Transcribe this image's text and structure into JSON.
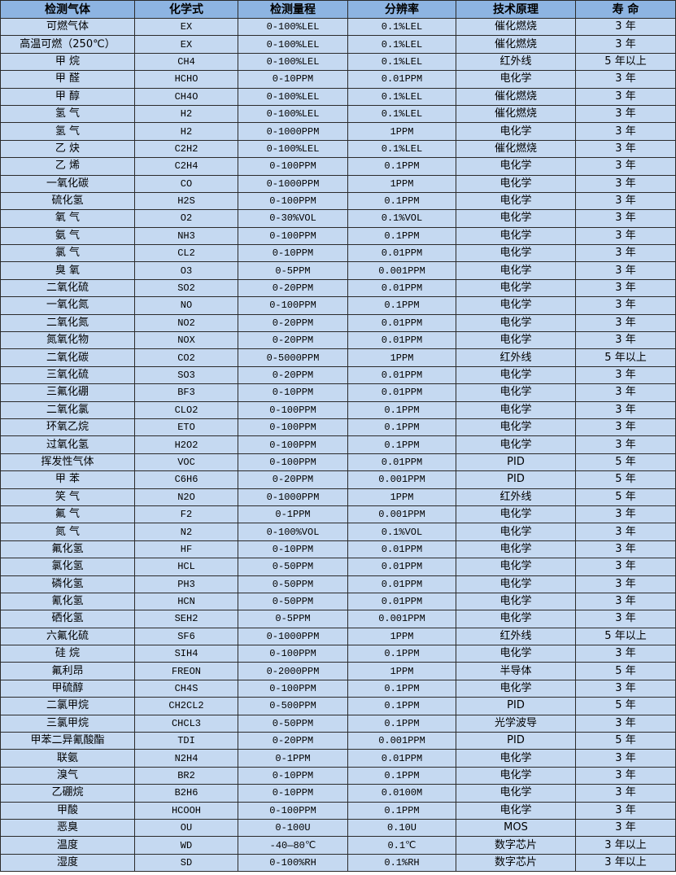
{
  "table": {
    "headers": [
      "检测气体",
      "化学式",
      "检测量程",
      "分辨率",
      "技术原理",
      "寿  命"
    ],
    "rows": [
      [
        "可燃气体",
        "EX",
        "0-100%LEL",
        "0.1%LEL",
        "催化燃烧",
        "3 年"
      ],
      [
        "高温可燃（250℃）",
        "EX",
        "0-100%LEL",
        "0.1%LEL",
        "催化燃烧",
        "3 年"
      ],
      [
        "甲 烷",
        "CH4",
        "0-100%LEL",
        "0.1%LEL",
        "红外线",
        "5 年以上"
      ],
      [
        "甲 醛",
        "HCHO",
        "0-10PPM",
        "0.01PPM",
        "电化学",
        "3 年"
      ],
      [
        "甲 醇",
        "CH4O",
        "0-100%LEL",
        "0.1%LEL",
        "催化燃烧",
        "3 年"
      ],
      [
        "氢 气",
        "H2",
        "0-100%LEL",
        "0.1%LEL",
        "催化燃烧",
        "3 年"
      ],
      [
        "氢 气",
        "H2",
        "0-1000PPM",
        "1PPM",
        "电化学",
        "3 年"
      ],
      [
        "乙 炔",
        "C2H2",
        "0-100%LEL",
        "0.1%LEL",
        "催化燃烧",
        "3 年"
      ],
      [
        "乙 烯",
        "C2H4",
        "0-100PPM",
        "0.1PPM",
        "电化学",
        "3 年"
      ],
      [
        "一氧化碳",
        "CO",
        "0-1000PPM",
        "1PPM",
        "电化学",
        "3 年"
      ],
      [
        "硫化氢",
        "H2S",
        "0-100PPM",
        "0.1PPM",
        "电化学",
        "3 年"
      ],
      [
        "氧 气",
        "O2",
        "0-30%VOL",
        "0.1%VOL",
        "电化学",
        "3 年"
      ],
      [
        "氨 气",
        "NH3",
        "0-100PPM",
        "0.1PPM",
        "电化学",
        "3 年"
      ],
      [
        "氯 气",
        "CL2",
        "0-10PPM",
        "0.01PPM",
        "电化学",
        "3 年"
      ],
      [
        "臭 氧",
        "O3",
        "0-5PPM",
        "0.001PPM",
        "电化学",
        "3 年"
      ],
      [
        "二氧化硫",
        "SO2",
        "0-20PPM",
        "0.01PPM",
        "电化学",
        "3 年"
      ],
      [
        "一氧化氮",
        "NO",
        "0-100PPM",
        "0.1PPM",
        "电化学",
        "3 年"
      ],
      [
        "二氧化氮",
        "NO2",
        "0-20PPM",
        "0.01PPM",
        "电化学",
        "3 年"
      ],
      [
        "氮氧化物",
        "NOX",
        "0-20PPM",
        "0.01PPM",
        "电化学",
        "3 年"
      ],
      [
        "二氧化碳",
        "CO2",
        "0-5000PPM",
        "1PPM",
        "红外线",
        "5 年以上"
      ],
      [
        "三氧化硫",
        "SO3",
        "0-20PPM",
        "0.01PPM",
        "电化学",
        "3 年"
      ],
      [
        "三氟化硼",
        "BF3",
        "0-10PPM",
        "0.01PPM",
        "电化学",
        "3 年"
      ],
      [
        "二氧化氯",
        "CLO2",
        "0-100PPM",
        "0.1PPM",
        "电化学",
        "3 年"
      ],
      [
        "环氧乙烷",
        "ETO",
        "0-100PPM",
        "0.1PPM",
        "电化学",
        "3 年"
      ],
      [
        "过氧化氢",
        "H2O2",
        "0-100PPM",
        "0.1PPM",
        "电化学",
        "3 年"
      ],
      [
        "挥发性气体",
        "VOC",
        "0-100PPM",
        "0.01PPM",
        "PID",
        "5 年"
      ],
      [
        "甲 苯",
        "C6H6",
        "0-20PPM",
        "0.001PPM",
        "PID",
        "5 年"
      ],
      [
        "笑 气",
        "N2O",
        "0-1000PPM",
        "1PPM",
        "红外线",
        "5 年"
      ],
      [
        "氟 气",
        "F2",
        "0-1PPM",
        "0.001PPM",
        "电化学",
        "3 年"
      ],
      [
        "氮 气",
        "N2",
        "0-100%VOL",
        "0.1%VOL",
        "电化学",
        "3 年"
      ],
      [
        "氟化氢",
        "HF",
        "0-10PPM",
        "0.01PPM",
        "电化学",
        "3 年"
      ],
      [
        "氯化氢",
        "HCL",
        "0-50PPM",
        "0.01PPM",
        "电化学",
        "3 年"
      ],
      [
        "磷化氢",
        "PH3",
        "0-50PPM",
        "0.01PPM",
        "电化学",
        "3 年"
      ],
      [
        "氰化氢",
        "HCN",
        "0-50PPM",
        "0.01PPM",
        "电化学",
        "3 年"
      ],
      [
        "硒化氢",
        "SEH2",
        "0-5PPM",
        "0.001PPM",
        "电化学",
        "3 年"
      ],
      [
        "六氟化硫",
        "SF6",
        "0-1000PPM",
        "1PPM",
        "红外线",
        "5 年以上"
      ],
      [
        "硅 烷",
        "SIH4",
        "0-100PPM",
        "0.1PPM",
        "电化学",
        "3 年"
      ],
      [
        "氟利昂",
        "FREON",
        "0-2000PPM",
        "1PPM",
        "半导体",
        "5 年"
      ],
      [
        "甲硫醇",
        "CH4S",
        "0-100PPM",
        "0.1PPM",
        "电化学",
        "3 年"
      ],
      [
        "二氯甲烷",
        "CH2CL2",
        "0-500PPM",
        "0.1PPM",
        "PID",
        "5 年"
      ],
      [
        "三氯甲烷",
        "CHCL3",
        "0-50PPM",
        "0.1PPM",
        "光学波导",
        "3 年"
      ],
      [
        "甲苯二异氰酸酯",
        "TDI",
        "0-20PPM",
        "0.001PPM",
        "PID",
        "5 年"
      ],
      [
        "联氨",
        "N2H4",
        "0-1PPM",
        "0.01PPM",
        "电化学",
        "3 年"
      ],
      [
        "溴气",
        "BR2",
        "0-10PPM",
        "0.1PPM",
        "电化学",
        "3 年"
      ],
      [
        "乙硼烷",
        "B2H6",
        "0-10PPM",
        "0.0100M",
        "电化学",
        "3 年"
      ],
      [
        "甲酸",
        "HCOOH",
        "0-100PPM",
        "0.1PPM",
        "电化学",
        "3 年"
      ],
      [
        "恶臭",
        "OU",
        "0-100U",
        "0.10U",
        "MOS",
        "3 年"
      ],
      [
        "温度",
        "WD",
        "-40—80℃",
        "0.1℃",
        "数字芯片",
        "3 年以上"
      ],
      [
        "湿度",
        "SD",
        "0-100%RH",
        "0.1%RH",
        "数字芯片",
        "3 年以上"
      ]
    ]
  },
  "colors": {
    "header_bg": "#8db4e2",
    "cell_bg": "#c5d9f1",
    "border": "#2b2b2b"
  }
}
